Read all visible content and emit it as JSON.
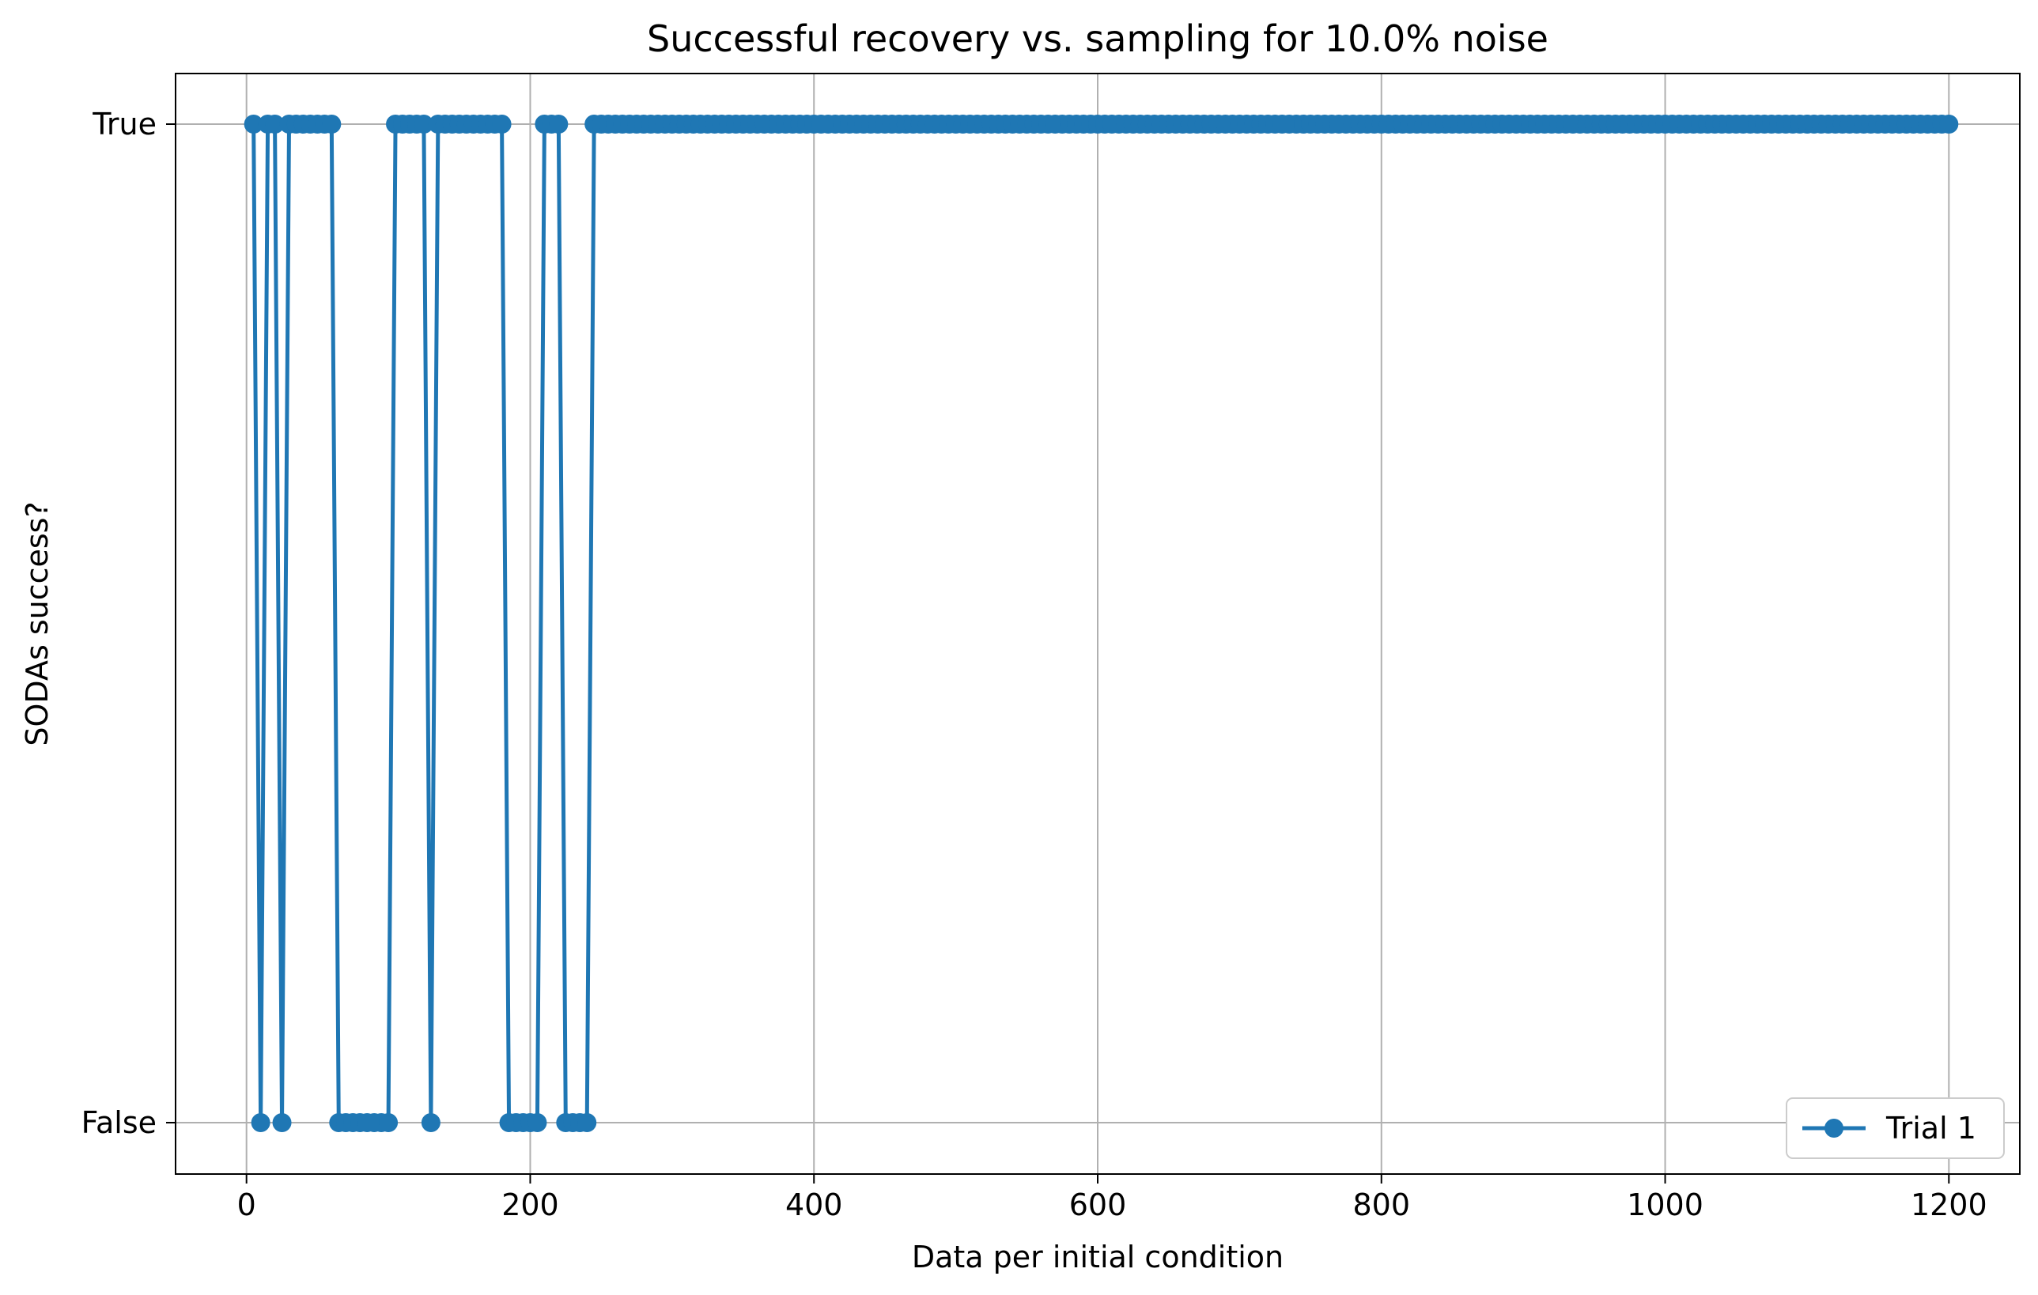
{
  "chart_data": {
    "type": "line",
    "title": "Successful recovery vs. sampling for 10.0% noise",
    "xlabel": "Data per initial condition",
    "ylabel": "SODAs success?",
    "xlim": [
      -50,
      1250
    ],
    "x_ticks": [
      0,
      200,
      400,
      600,
      800,
      1000,
      1200
    ],
    "y_categories": [
      "False",
      "True"
    ],
    "grid": true,
    "legend_position": "lower-right",
    "series": [
      {
        "name": "Trial 1",
        "color": "#1f77b4",
        "marker": "circle",
        "runs": [
          {
            "from": 5,
            "to": 5,
            "value": true
          },
          {
            "from": 10,
            "to": 10,
            "value": false
          },
          {
            "from": 15,
            "to": 20,
            "value": true
          },
          {
            "from": 25,
            "to": 25,
            "value": false
          },
          {
            "from": 30,
            "to": 60,
            "value": true
          },
          {
            "from": 65,
            "to": 100,
            "value": false
          },
          {
            "from": 105,
            "to": 125,
            "value": true
          },
          {
            "from": 130,
            "to": 130,
            "value": false
          },
          {
            "from": 135,
            "to": 180,
            "value": true
          },
          {
            "from": 185,
            "to": 205,
            "value": false
          },
          {
            "from": 210,
            "to": 220,
            "value": true
          },
          {
            "from": 225,
            "to": 240,
            "value": false
          },
          {
            "from": 245,
            "to": 1200,
            "value": true
          }
        ]
      }
    ]
  }
}
